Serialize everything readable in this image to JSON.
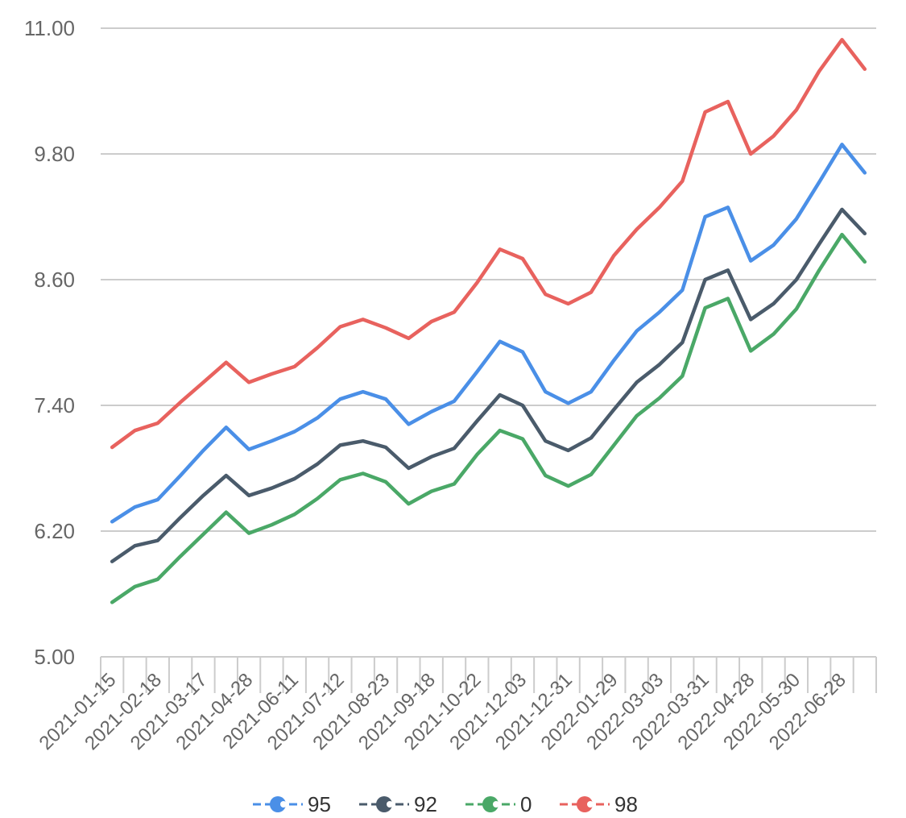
{
  "chart_data": {
    "type": "line",
    "title": "",
    "xlabel": "",
    "ylabel": "",
    "ylim": [
      5.0,
      11.0
    ],
    "yticks": [
      "5.00",
      "6.20",
      "7.40",
      "8.60",
      "9.80",
      "11.00"
    ],
    "xtick_labels": [
      "2021-01-15",
      "2021-02-18",
      "2021-03-17",
      "2021-04-28",
      "2021-06-11",
      "2021-07-12",
      "2021-08-23",
      "2021-09-18",
      "2021-10-22",
      "2021-12-03",
      "2021-12-31",
      "2022-01-29",
      "2022-03-03",
      "2022-03-31",
      "2022-04-28",
      "2022-05-30",
      "2022-06-28"
    ],
    "grid": true,
    "legend_position": "bottom",
    "series": [
      {
        "name": "95",
        "color": "#4a8fe7",
        "values": [
          6.29,
          6.43,
          6.5,
          6.73,
          6.97,
          7.19,
          6.98,
          7.06,
          7.15,
          7.28,
          7.46,
          7.53,
          7.46,
          7.22,
          7.34,
          7.44,
          7.72,
          8.01,
          7.91,
          7.53,
          7.42,
          7.53,
          7.83,
          8.11,
          8.29,
          8.5,
          9.2,
          9.29,
          8.78,
          8.93,
          9.18,
          9.53,
          9.89,
          9.62
        ]
      },
      {
        "name": "92",
        "color": "#4a5b6b",
        "values": [
          5.91,
          6.06,
          6.11,
          6.33,
          6.54,
          6.73,
          6.54,
          6.61,
          6.7,
          6.84,
          7.02,
          7.06,
          7.0,
          6.8,
          6.91,
          6.99,
          7.25,
          7.5,
          7.4,
          7.06,
          6.97,
          7.09,
          7.36,
          7.62,
          7.79,
          8.0,
          8.6,
          8.69,
          8.22,
          8.37,
          8.6,
          8.94,
          9.27,
          9.04
        ]
      },
      {
        "name": "0",
        "color": "#4aa867",
        "values": [
          5.52,
          5.67,
          5.74,
          5.96,
          6.17,
          6.38,
          6.18,
          6.26,
          6.36,
          6.51,
          6.69,
          6.75,
          6.67,
          6.46,
          6.58,
          6.65,
          6.93,
          7.16,
          7.08,
          6.73,
          6.63,
          6.74,
          7.02,
          7.3,
          7.47,
          7.68,
          8.33,
          8.42,
          7.92,
          8.08,
          8.32,
          8.69,
          9.03,
          8.77
        ]
      },
      {
        "name": "98",
        "color": "#e8625e",
        "values": [
          7.0,
          7.16,
          7.23,
          7.43,
          7.62,
          7.81,
          7.62,
          7.7,
          7.77,
          7.95,
          8.15,
          8.22,
          8.14,
          8.04,
          8.2,
          8.29,
          8.57,
          8.89,
          8.8,
          8.46,
          8.37,
          8.48,
          8.83,
          9.08,
          9.29,
          9.54,
          10.2,
          10.3,
          9.8,
          9.97,
          10.22,
          10.59,
          10.89,
          10.61
        ]
      }
    ]
  }
}
